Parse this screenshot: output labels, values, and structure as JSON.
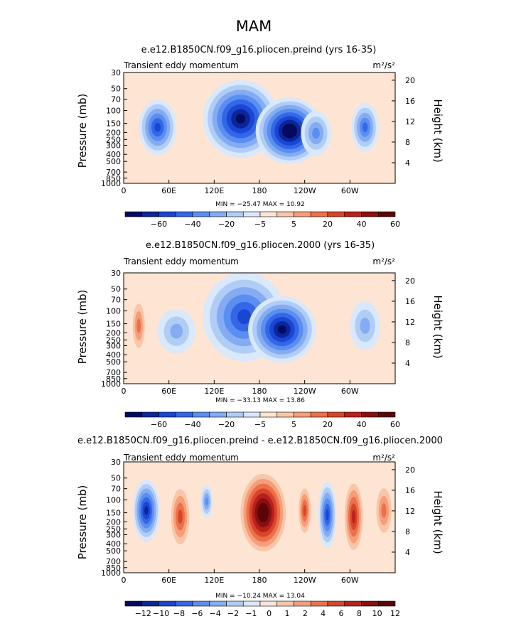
{
  "figure_title": "MAM",
  "chart_data": [
    {
      "type": "contour",
      "title": "e.e12.B1850CN.f09_g16.pliocen.preind (yrs 16-35)",
      "left_label": "Transient eddy momentum",
      "units_label": "m²/s²",
      "ylabel": "Pressure (mb)",
      "y2label": "Height (km)",
      "x_ticks": [
        "0",
        "60E",
        "120E",
        "180",
        "120W",
        "60W"
      ],
      "y_ticks": [
        "30",
        "50",
        "70",
        "100",
        "150",
        "200",
        "250",
        "300",
        "400",
        "500",
        "700",
        "850",
        "1000"
      ],
      "y2_ticks": [
        "20",
        "16",
        "12",
        "8",
        "4"
      ],
      "min_max_text": "MIN = −25.47   MAX =  10.92",
      "colorbar_labels": [
        "−60",
        "−40",
        "−20",
        "−5",
        "5",
        "20",
        "40",
        "60"
      ],
      "colorbar_colors": [
        "#050a60",
        "#0b2699",
        "#1a46d4",
        "#3467e8",
        "#5a8ef0",
        "#85acf2",
        "#b0cdf6",
        "#d9e8fb",
        "#fde4d3",
        "#f9c6a8",
        "#f59e78",
        "#ec704b",
        "#d9452a",
        "#b8211b",
        "#8a0f0f",
        "#5c0507"
      ],
      "min": -25.47,
      "max": 10.92,
      "features": [
        {
          "lon": 155,
          "p": 130,
          "value": -15,
          "rx": 50,
          "ry": 0.35
        },
        {
          "lon": 220,
          "p": 190,
          "value": -18,
          "rx": 45,
          "ry": 0.3
        },
        {
          "lon": 45,
          "p": 170,
          "value": -12,
          "rx": 25,
          "ry": 0.25
        },
        {
          "lon": 320,
          "p": 170,
          "value": -10,
          "rx": 18,
          "ry": 0.22
        },
        {
          "lon": 255,
          "p": 205,
          "value": -8,
          "rx": 20,
          "ry": 0.2
        }
      ]
    },
    {
      "type": "contour",
      "title": "e.e12.B1850CN.f09_g16.pliocen.2000 (yrs 16-35)",
      "left_label": "Transient eddy momentum",
      "units_label": "m²/s²",
      "ylabel": "Pressure (mb)",
      "y2label": "Height (km)",
      "x_ticks": [
        "0",
        "60E",
        "120E",
        "180",
        "120W",
        "60W"
      ],
      "y_ticks": [
        "30",
        "50",
        "70",
        "100",
        "150",
        "200",
        "250",
        "300",
        "400",
        "500",
        "700",
        "850",
        "1000"
      ],
      "y2_ticks": [
        "20",
        "16",
        "12",
        "8",
        "4"
      ],
      "min_max_text": "MIN = −33.13   MAX =  13.86",
      "colorbar_labels": [
        "−60",
        "−40",
        "−20",
        "−5",
        "5",
        "20",
        "40",
        "60"
      ],
      "colorbar_colors": [
        "#050a60",
        "#0b2699",
        "#1a46d4",
        "#3467e8",
        "#5a8ef0",
        "#85acf2",
        "#b0cdf6",
        "#d9e8fb",
        "#fde4d3",
        "#f9c6a8",
        "#f59e78",
        "#ec704b",
        "#d9452a",
        "#b8211b",
        "#8a0f0f",
        "#5c0507"
      ],
      "min": -33.13,
      "max": 13.86,
      "features": [
        {
          "lon": 160,
          "p": 120,
          "value": -16,
          "rx": 55,
          "ry": 0.4
        },
        {
          "lon": 210,
          "p": 180,
          "value": -22,
          "rx": 45,
          "ry": 0.3
        },
        {
          "lon": 70,
          "p": 190,
          "value": -8,
          "rx": 25,
          "ry": 0.2
        },
        {
          "lon": 320,
          "p": 160,
          "value": -9,
          "rx": 20,
          "ry": 0.22
        },
        {
          "lon": 20,
          "p": 160,
          "value": 8,
          "rx": 8,
          "ry": 0.2
        }
      ]
    },
    {
      "type": "contour",
      "title": "e.e12.B1850CN.f09_g16.pliocen.preind - e.e12.B1850CN.f09_g16.pliocen.2000",
      "left_label": "Transient eddy momentum",
      "units_label": "m²/s²",
      "ylabel": "Pressure (mb)",
      "y2label": "Height (km)",
      "x_ticks": [
        "0",
        "60E",
        "120E",
        "180",
        "120W",
        "60W"
      ],
      "y_ticks": [
        "30",
        "50",
        "70",
        "100",
        "150",
        "200",
        "250",
        "300",
        "400",
        "500",
        "700",
        "850",
        "1000"
      ],
      "y2_ticks": [
        "20",
        "16",
        "12",
        "8",
        "4"
      ],
      "min_max_text": "MIN = −10.24   MAX =  13.04",
      "colorbar_labels": [
        "−12",
        "−10",
        "−8",
        "−6",
        "−4",
        "−2",
        "−1",
        "0",
        "1",
        "2",
        "4",
        "6",
        "8",
        "10",
        "12"
      ],
      "colorbar_colors": [
        "#050a60",
        "#0b2699",
        "#1a46d4",
        "#3467e8",
        "#5a8ef0",
        "#85acf2",
        "#b0cdf6",
        "#d9e8fb",
        "#fde4d3",
        "#f9c6a8",
        "#f59e78",
        "#ec704b",
        "#d9452a",
        "#b8211b",
        "#8a0f0f",
        "#5c0507"
      ],
      "min": -10.24,
      "max": 13.04,
      "features": [
        {
          "lon": 30,
          "p": 140,
          "value": -7,
          "rx": 18,
          "ry": 0.28
        },
        {
          "lon": 110,
          "p": 105,
          "value": -4,
          "rx": 8,
          "ry": 0.15
        },
        {
          "lon": 185,
          "p": 150,
          "value": 8,
          "rx": 30,
          "ry": 0.35
        },
        {
          "lon": 270,
          "p": 160,
          "value": -6,
          "rx": 12,
          "ry": 0.3
        },
        {
          "lon": 305,
          "p": 170,
          "value": 5,
          "rx": 12,
          "ry": 0.3
        },
        {
          "lon": 75,
          "p": 170,
          "value": 4,
          "rx": 12,
          "ry": 0.25
        },
        {
          "lon": 240,
          "p": 140,
          "value": 4,
          "rx": 8,
          "ry": 0.2
        },
        {
          "lon": 345,
          "p": 140,
          "value": 3,
          "rx": 10,
          "ry": 0.2
        }
      ]
    }
  ]
}
